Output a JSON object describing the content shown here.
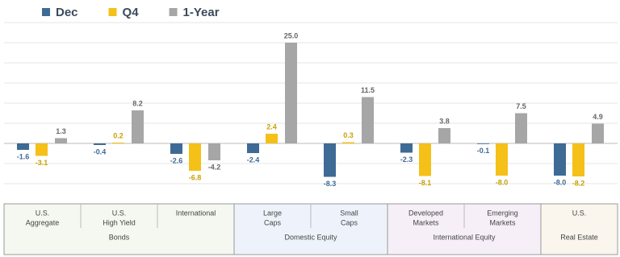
{
  "chart_data": {
    "type": "bar",
    "groups": [
      {
        "name": "Bonds",
        "categories": [
          [
            "U.S.",
            "Aggregate"
          ],
          [
            "U.S.",
            "High Yield"
          ],
          [
            "International"
          ]
        ]
      },
      {
        "name": "Domestic Equity",
        "categories": [
          [
            "Large",
            "Caps"
          ],
          [
            "Small",
            "Caps"
          ]
        ]
      },
      {
        "name": "International Equity",
        "categories": [
          [
            "Developed",
            "Markets"
          ],
          [
            "Emerging",
            "Markets"
          ]
        ]
      },
      {
        "name": "Real Estate",
        "categories": [
          [
            "U.S."
          ]
        ]
      }
    ],
    "series": [
      {
        "name": "Dec",
        "color": "#3e6a96",
        "values": [
          -1.6,
          -0.4,
          -2.6,
          -2.4,
          -8.3,
          -2.3,
          -0.1,
          -8.0
        ],
        "value_labels": [
          "-1.6",
          "-0.4",
          "-2.6",
          "-2.4",
          "-8.3",
          "-2.3",
          "-0.1",
          "-8.0"
        ]
      },
      {
        "name": "Q4",
        "color": "#f5c018",
        "values": [
          -3.1,
          0.2,
          -6.8,
          2.4,
          0.3,
          -8.1,
          -8.0,
          -8.2
        ],
        "value_labels": [
          "-3.1",
          "0.2",
          "-6.8",
          "2.4",
          "0.3",
          "-8.1",
          "-8.0",
          "-8.2"
        ]
      },
      {
        "name": "1-Year",
        "color": "#a6a6a6",
        "values": [
          1.3,
          8.2,
          -4.2,
          25.0,
          11.5,
          3.8,
          7.5,
          4.9
        ],
        "value_labels": [
          "1.3",
          "8.2",
          "-4.2",
          "25.0",
          "11.5",
          "3.8",
          "7.5",
          "4.9"
        ]
      }
    ],
    "ylim": [
      -15,
      30
    ],
    "yticks": [
      -10,
      -5,
      0,
      5,
      10,
      15,
      20,
      25,
      30
    ],
    "grid": true
  }
}
